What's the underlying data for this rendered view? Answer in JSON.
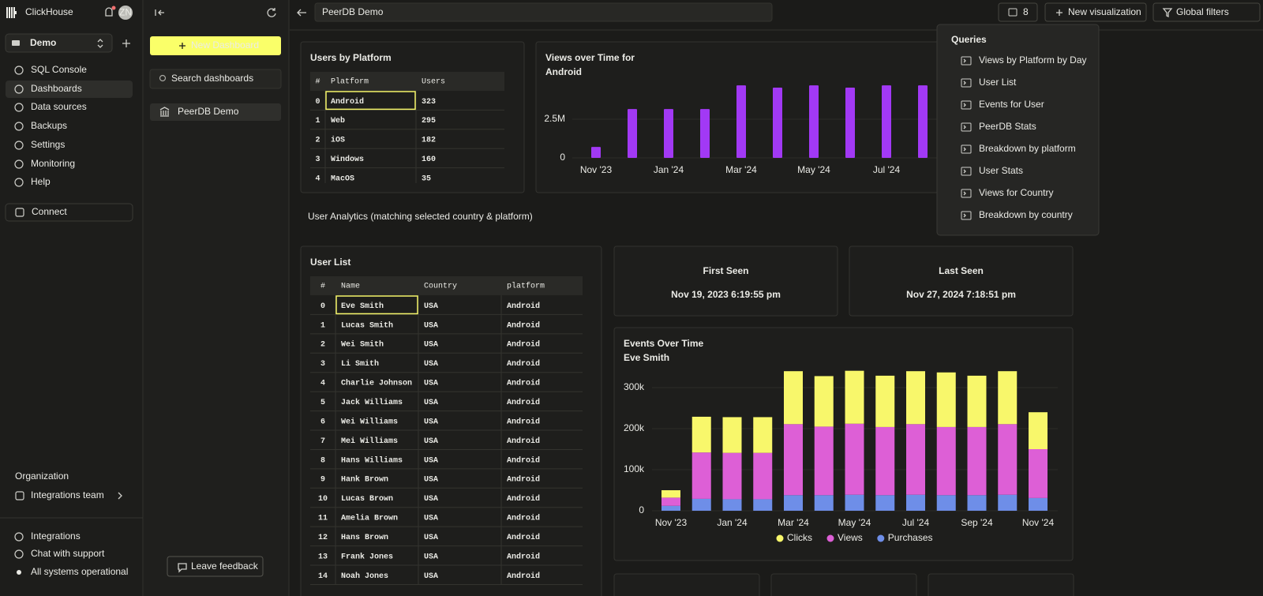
{
  "sidebar": {
    "brand": "ClickHouse",
    "avatar": "ZN",
    "service": "Demo",
    "nav": [
      "SQL Console",
      "Dashboards",
      "Data sources",
      "Backups",
      "Settings",
      "Monitoring",
      "Help"
    ],
    "connect": "Connect",
    "organization_label": "Organization",
    "organization": "Integrations team",
    "footer": [
      "Integrations",
      "Chat with support",
      "All systems operational"
    ]
  },
  "dashboards_panel": {
    "new_button": "New Dashboard",
    "search_placeholder": "Search dashboards",
    "items": [
      "PeerDB Demo"
    ],
    "feedback_button": "Leave feedback"
  },
  "topbar": {
    "title": "PeerDB Demo",
    "query_count": 8,
    "new_visualization": "New visualization",
    "global_filters": "Global filters"
  },
  "queries_menu": {
    "title": "Queries",
    "items": [
      "Views by Platform by Day",
      "User List",
      "Events for User",
      "PeerDB Stats",
      "Breakdown by platform",
      "User Stats",
      "Views for Country",
      "Breakdown by country"
    ]
  },
  "users_by_platform": {
    "title": "Users by Platform",
    "columns": [
      "#",
      "Platform",
      "Users"
    ],
    "rows": [
      [
        0,
        "Android",
        323
      ],
      [
        1,
        "Web",
        295
      ],
      [
        2,
        "iOS",
        182
      ],
      [
        3,
        "Windows",
        160
      ],
      [
        4,
        "MacOS",
        35
      ]
    ]
  },
  "section_label": "User Analytics (matching selected country & platform)",
  "user_list": {
    "title": "User List",
    "columns": [
      "#",
      "Name",
      "Country",
      "platform"
    ],
    "rows": [
      [
        0,
        "Eve Smith",
        "USA",
        "Android"
      ],
      [
        1,
        "Lucas Smith",
        "USA",
        "Android"
      ],
      [
        2,
        "Wei Smith",
        "USA",
        "Android"
      ],
      [
        3,
        "Li Smith",
        "USA",
        "Android"
      ],
      [
        4,
        "Charlie Johnson",
        "USA",
        "Android"
      ],
      [
        5,
        "Jack Williams",
        "USA",
        "Android"
      ],
      [
        6,
        "Wei Williams",
        "USA",
        "Android"
      ],
      [
        7,
        "Mei Williams",
        "USA",
        "Android"
      ],
      [
        8,
        "Hans Williams",
        "USA",
        "Android"
      ],
      [
        9,
        "Hank Brown",
        "USA",
        "Android"
      ],
      [
        10,
        "Lucas Brown",
        "USA",
        "Android"
      ],
      [
        11,
        "Amelia Brown",
        "USA",
        "Android"
      ],
      [
        12,
        "Hans Brown",
        "USA",
        "Android"
      ],
      [
        13,
        "Frank Jones",
        "USA",
        "Android"
      ],
      [
        14,
        "Noah Jones",
        "USA",
        "Android"
      ]
    ]
  },
  "first_seen": {
    "label": "First Seen",
    "value": "Nov 19, 2023 6:19:55 pm"
  },
  "last_seen": {
    "label": "Last Seen",
    "value": "Nov 27, 2024 7:18:51 pm"
  },
  "chart_data": [
    {
      "type": "bar",
      "title": "Views over Time for",
      "subtitle": "Android",
      "categories": [
        "Nov '23",
        null,
        "Jan '24",
        null,
        "Mar '24",
        null,
        "May '24",
        null,
        "Jul '24",
        null
      ],
      "values": [
        710000,
        3160000,
        3160000,
        3160000,
        4690000,
        4540000,
        4690000,
        4540000,
        4690000,
        4690000
      ],
      "color": "#a239f5",
      "ylim": [
        0,
        5000000
      ],
      "yticks": [
        0,
        {
          "value": 2500000,
          "label": "2.5M"
        }
      ],
      "grid": true
    },
    {
      "type": "stacked_bar",
      "title": "Events Over Time",
      "subtitle": "Eve Smith",
      "categories": [
        "Nov '23",
        null,
        "Jan '24",
        null,
        "Mar '24",
        null,
        "May '24",
        null,
        "Jul '24",
        null,
        "Sep '24",
        null,
        "Nov '24"
      ],
      "series": [
        {
          "name": "Clicks",
          "color": "#f8f76b",
          "values": [
            18000,
            87000,
            87000,
            87000,
            129000,
            123000,
            129000,
            125000,
            129000,
            133000,
            125000,
            129000,
            90000
          ]
        },
        {
          "name": "Views",
          "color": "#dd5fd6",
          "values": [
            20000,
            113000,
            113000,
            113000,
            173000,
            167000,
            173000,
            166000,
            172000,
            166000,
            166000,
            172000,
            119000
          ]
        },
        {
          "name": "Purchases",
          "color": "#6e8ee8",
          "values": [
            12000,
            29000,
            28000,
            28000,
            38000,
            38000,
            39000,
            38000,
            39000,
            38000,
            38000,
            39000,
            31000
          ]
        }
      ],
      "ylim": [
        0,
        350000
      ],
      "yticks": [
        0,
        {
          "value": 100000,
          "label": "100k"
        },
        {
          "value": 200000,
          "label": "200k"
        },
        {
          "value": 300000,
          "label": "300k"
        }
      ],
      "grid": true,
      "legend": "bottom"
    }
  ]
}
